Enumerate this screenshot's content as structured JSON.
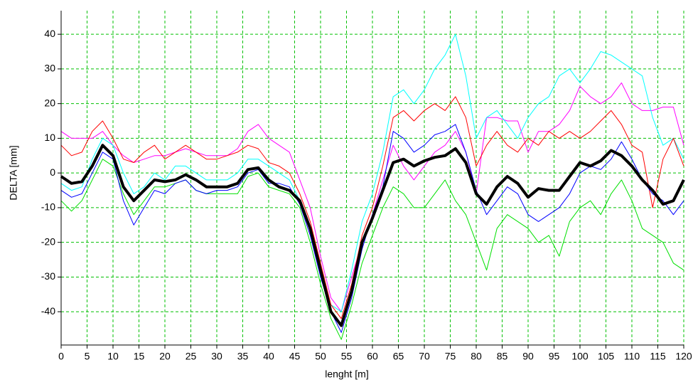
{
  "chart_data": {
    "type": "line",
    "xlabel": "lenght [m]",
    "ylabel": "DELTA [mm]",
    "xlim": [
      0,
      120
    ],
    "ylim": [
      -49.6,
      46.8
    ],
    "xticks": [
      0,
      5,
      10,
      15,
      20,
      25,
      30,
      35,
      40,
      45,
      50,
      55,
      60,
      65,
      70,
      75,
      80,
      85,
      90,
      95,
      100,
      105,
      110,
      115,
      120
    ],
    "yticks": [
      -40,
      -30,
      -20,
      -10,
      0,
      10,
      20,
      30,
      40
    ],
    "grid": true,
    "grid_color": "#00c000",
    "x": [
      0,
      2,
      4,
      6,
      8,
      10,
      12,
      14,
      16,
      18,
      20,
      22,
      24,
      26,
      28,
      30,
      32,
      34,
      36,
      38,
      40,
      42,
      44,
      46,
      48,
      50,
      52,
      54,
      56,
      58,
      60,
      62,
      64,
      66,
      68,
      70,
      72,
      74,
      76,
      78,
      80,
      82,
      84,
      86,
      88,
      90,
      92,
      94,
      96,
      98,
      100,
      102,
      104,
      106,
      108,
      110,
      112,
      114,
      116,
      118,
      120
    ],
    "series": [
      {
        "color": "#00e000",
        "width": 1,
        "values": [
          -8,
          -11,
          -8,
          -2,
          4,
          2,
          -6,
          -12,
          -8,
          -4,
          -4,
          -3,
          -2,
          -5,
          -6,
          -6,
          -6,
          -6,
          -1,
          0,
          -4,
          -5,
          -6,
          -10,
          -20,
          -32,
          -42,
          -48,
          -38,
          -26,
          -18,
          -10,
          -4,
          -6,
          -10,
          -10,
          -6,
          -2,
          -8,
          -12,
          -20,
          -28,
          -16,
          -12,
          -14,
          -16,
          -20,
          -18,
          -24,
          -14,
          -10,
          -8,
          -12,
          -6,
          -2,
          -8,
          -16,
          -18,
          -20,
          -26,
          -28
        ]
      },
      {
        "color": "#ff00ff",
        "width": 1,
        "values": [
          12,
          10,
          10,
          10,
          12,
          8,
          5,
          3,
          4,
          5,
          5,
          6,
          7,
          6,
          5,
          5,
          5,
          7,
          12,
          14,
          10,
          8,
          6,
          -2,
          -10,
          -24,
          -36,
          -40,
          -30,
          -20,
          -12,
          -2,
          8,
          2,
          -2,
          2,
          6,
          8,
          12,
          6,
          -6,
          16,
          16,
          15,
          15,
          6,
          12,
          12,
          14,
          18,
          25,
          22,
          20,
          22,
          26,
          20,
          18,
          18,
          19,
          19,
          8
        ]
      },
      {
        "color": "#00ffff",
        "width": 1,
        "values": [
          -3,
          -5,
          -4,
          4,
          10,
          8,
          0,
          -6,
          -4,
          0,
          -2,
          2,
          2,
          0,
          -2,
          -2,
          -2,
          0,
          4,
          4,
          2,
          0,
          -2,
          -8,
          -16,
          -28,
          -38,
          -40,
          -28,
          -14,
          -6,
          6,
          22,
          24,
          20,
          24,
          30,
          34,
          40,
          28,
          10,
          16,
          18,
          14,
          10,
          16,
          20,
          22,
          28,
          30,
          26,
          30,
          35,
          34,
          32,
          30,
          28,
          16,
          8,
          10,
          4
        ]
      },
      {
        "color": "#ff0000",
        "width": 1,
        "values": [
          8,
          5,
          6,
          12,
          15,
          10,
          4,
          3,
          6,
          8,
          4,
          6,
          8,
          6,
          4,
          4,
          5,
          6,
          8,
          7,
          3,
          2,
          0,
          -6,
          -14,
          -26,
          -38,
          -42,
          -32,
          -18,
          -10,
          2,
          16,
          18,
          15,
          18,
          20,
          18,
          22,
          16,
          2,
          8,
          12,
          8,
          6,
          10,
          8,
          12,
          10,
          12,
          10,
          12,
          15,
          18,
          14,
          8,
          6,
          -10,
          4,
          10,
          2
        ]
      },
      {
        "color": "#0000ff",
        "width": 1,
        "values": [
          -5,
          -7,
          -6,
          0,
          6,
          4,
          -8,
          -15,
          -10,
          -5,
          -6,
          -3,
          -2,
          -5,
          -6,
          -5,
          -5,
          -4,
          0,
          1,
          -3,
          -3,
          -4,
          -9,
          -18,
          -30,
          -40,
          -46,
          -36,
          -22,
          -12,
          -4,
          12,
          10,
          6,
          8,
          11,
          12,
          14,
          6,
          -5,
          -12,
          -8,
          -4,
          -6,
          -12,
          -14,
          -12,
          -10,
          -6,
          0,
          2,
          1,
          4,
          9,
          4,
          -2,
          -6,
          -8,
          -12,
          -8
        ]
      },
      {
        "color": "#000000",
        "width": 4,
        "values": [
          -1,
          -3,
          -2.5,
          2,
          8,
          5,
          -4,
          -8,
          -5,
          -2,
          -2.5,
          -2,
          -0.5,
          -2,
          -4,
          -4,
          -4,
          -3,
          1,
          1.5,
          -2,
          -4,
          -5,
          -8,
          -16,
          -28,
          -40,
          -44,
          -34,
          -20,
          -13,
          -5,
          3,
          4,
          2,
          3.5,
          4.5,
          5,
          7,
          3,
          -6,
          -9,
          -4,
          -1,
          -3,
          -7,
          -4.5,
          -5,
          -5,
          -1,
          3,
          2,
          3.5,
          6.5,
          5,
          2,
          -2,
          -5,
          -9,
          -8,
          -2
        ]
      }
    ]
  }
}
